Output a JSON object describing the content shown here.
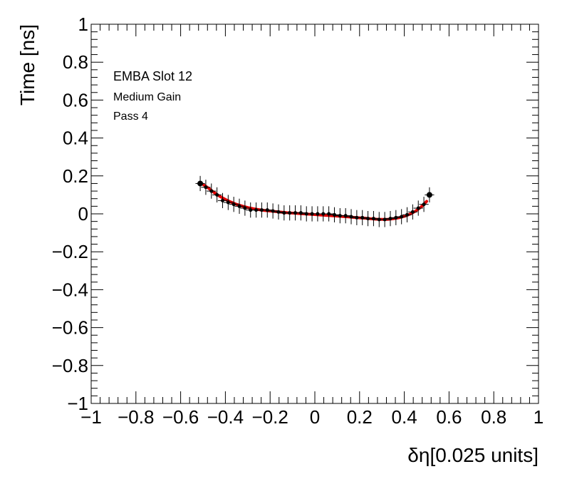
{
  "chart_data": {
    "type": "scatter",
    "xlabel": "δη[0.025 units]",
    "ylabel": "Time [ns]",
    "xlim": [
      -1,
      1
    ],
    "ylim": [
      -1,
      1
    ],
    "grid": false,
    "annotations": [
      "EMBA Slot 12",
      "Medium Gain",
      "Pass 4"
    ],
    "x_ticks": [
      "−1",
      "−0.8",
      "−0.6",
      "−0.4",
      "−0.2",
      "0",
      "0.2",
      "0.4",
      "0.6",
      "0.8",
      "1"
    ],
    "y_ticks": [
      "1",
      "0.8",
      "0.6",
      "0.4",
      "0.2",
      "0",
      "−0.2",
      "−0.4",
      "−0.6",
      "−0.8",
      "−1"
    ],
    "series": [
      {
        "kind": "points",
        "color": "#000000",
        "error_y": 0.04,
        "x": [
          -0.5125,
          -0.4875,
          -0.4625,
          -0.4375,
          -0.4125,
          -0.3875,
          -0.3625,
          -0.3375,
          -0.3125,
          -0.2875,
          -0.2625,
          -0.2375,
          -0.2125,
          -0.1875,
          -0.1625,
          -0.1375,
          -0.1125,
          -0.0875,
          -0.0625,
          -0.0375,
          -0.0125,
          0.0125,
          0.0375,
          0.0625,
          0.0875,
          0.1125,
          0.1375,
          0.1625,
          0.1875,
          0.2125,
          0.2375,
          0.2625,
          0.2875,
          0.3125,
          0.3375,
          0.3625,
          0.3875,
          0.4125,
          0.4375,
          0.4625,
          0.4875,
          0.5125
        ],
        "y": [
          0.16,
          0.14,
          0.12,
          0.1,
          0.07,
          0.06,
          0.05,
          0.04,
          0.03,
          0.02,
          0.02,
          0.02,
          0.02,
          0.015,
          0.01,
          0.005,
          0.005,
          0.005,
          0.005,
          0.0,
          0.0,
          0.0,
          0.0,
          0.0,
          -0.005,
          -0.01,
          -0.01,
          -0.015,
          -0.02,
          -0.02,
          -0.025,
          -0.025,
          -0.03,
          -0.03,
          -0.025,
          -0.02,
          -0.015,
          -0.005,
          0.01,
          0.03,
          0.05,
          0.1
        ]
      },
      {
        "kind": "fit",
        "color": "#e00000",
        "x": [
          -0.5,
          -0.475,
          -0.45,
          -0.425,
          -0.4,
          -0.375,
          -0.35,
          -0.325,
          -0.3,
          -0.275,
          -0.25,
          -0.225,
          -0.2,
          -0.175,
          -0.15,
          -0.125,
          -0.1,
          -0.075,
          -0.05,
          -0.025,
          0.0,
          0.025,
          0.05,
          0.075,
          0.1,
          0.125,
          0.15,
          0.175,
          0.2,
          0.225,
          0.25,
          0.275,
          0.3,
          0.325,
          0.35,
          0.375,
          0.4,
          0.425,
          0.45,
          0.475,
          0.5
        ],
        "y": [
          0.155,
          0.135,
          0.112,
          0.092,
          0.076,
          0.062,
          0.05,
          0.041,
          0.033,
          0.027,
          0.022,
          0.018,
          0.015,
          0.012,
          0.009,
          0.006,
          0.004,
          0.002,
          0.0,
          -0.002,
          -0.004,
          -0.006,
          -0.008,
          -0.01,
          -0.012,
          -0.014,
          -0.016,
          -0.019,
          -0.021,
          -0.023,
          -0.026,
          -0.028,
          -0.029,
          -0.029,
          -0.026,
          -0.021,
          -0.013,
          -0.002,
          0.014,
          0.036,
          0.066
        ]
      }
    ]
  }
}
